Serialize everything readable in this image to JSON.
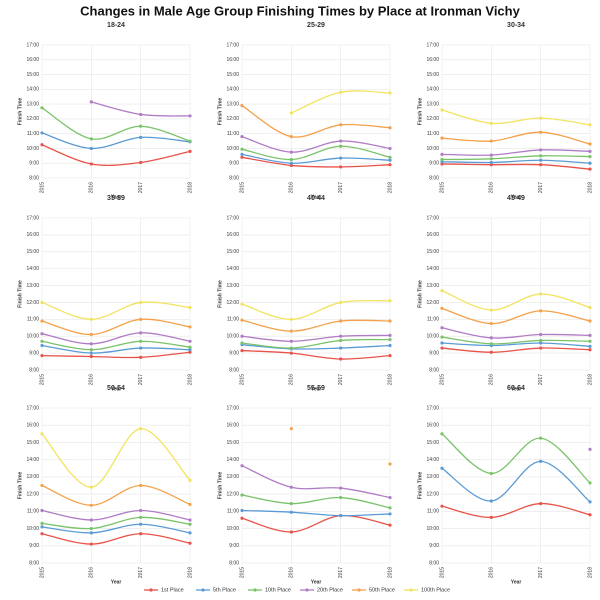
{
  "title": "Changes in Male Age Group Finishing Times by Place at Ironman Vichy",
  "chart_data": [
    {
      "type": "line",
      "title": "18-24",
      "xlabel": "Year",
      "ylabel": "Finish Time",
      "categories": [
        "2015",
        "2016",
        "2017",
        "2018"
      ],
      "ylim": [
        8,
        17
      ],
      "yticks": [
        {
          "value": 8,
          "label": "8:00"
        },
        {
          "value": 9,
          "label": "9:00"
        },
        {
          "value": 10,
          "label": "10:00"
        },
        {
          "value": 11,
          "label": "11:00"
        },
        {
          "value": 12,
          "label": "12:00"
        },
        {
          "value": 13,
          "label": "13:00"
        },
        {
          "value": 14,
          "label": "14:00"
        },
        {
          "value": 15,
          "label": "15:00"
        },
        {
          "value": 16,
          "label": "16:00"
        },
        {
          "value": 17,
          "label": "17:00"
        }
      ],
      "series": [
        {
          "name": "1st Place",
          "color": "#e8534a",
          "values": [
            10.25,
            8.95,
            9.05,
            9.8
          ]
        },
        {
          "name": "5th Place",
          "color": "#5b9bd5",
          "values": [
            11.05,
            10.0,
            10.75,
            10.45
          ]
        },
        {
          "name": "10th Place",
          "color": "#7ac36a",
          "values": [
            12.75,
            10.65,
            11.5,
            10.5
          ]
        },
        {
          "name": "20th Place",
          "color": "#b07cc6",
          "values": [
            null,
            13.15,
            12.3,
            12.2
          ]
        },
        {
          "name": "50th Place",
          "color": "#f5a04a",
          "values": [
            null,
            null,
            null,
            null
          ]
        },
        {
          "name": "100th Place",
          "color": "#f2e35e",
          "values": [
            null,
            null,
            null,
            null
          ]
        }
      ]
    },
    {
      "type": "line",
      "title": "25-29",
      "xlabel": "Year",
      "ylabel": "Finish Time",
      "categories": [
        "2015",
        "2016",
        "2017",
        "2018"
      ],
      "ylim": [
        8,
        17
      ],
      "yticks": [
        {
          "value": 8,
          "label": "8:00"
        },
        {
          "value": 9,
          "label": "9:00"
        },
        {
          "value": 10,
          "label": "10:00"
        },
        {
          "value": 11,
          "label": "11:00"
        },
        {
          "value": 12,
          "label": "12:00"
        },
        {
          "value": 13,
          "label": "13:00"
        },
        {
          "value": 14,
          "label": "14:00"
        },
        {
          "value": 15,
          "label": "15:00"
        },
        {
          "value": 16,
          "label": "16:00"
        },
        {
          "value": 17,
          "label": "17:00"
        }
      ],
      "series": [
        {
          "name": "1st Place",
          "color": "#e8534a",
          "values": [
            9.4,
            8.85,
            8.75,
            8.9
          ]
        },
        {
          "name": "5th Place",
          "color": "#5b9bd5",
          "values": [
            9.6,
            9.0,
            9.35,
            9.2
          ]
        },
        {
          "name": "10th Place",
          "color": "#7ac36a",
          "values": [
            9.95,
            9.25,
            10.15,
            9.4
          ]
        },
        {
          "name": "20th Place",
          "color": "#b07cc6",
          "values": [
            10.8,
            9.75,
            10.5,
            10.0
          ]
        },
        {
          "name": "50th Place",
          "color": "#f5a04a",
          "values": [
            12.9,
            10.8,
            11.6,
            11.4
          ]
        },
        {
          "name": "100th Place",
          "color": "#f2e35e",
          "values": [
            null,
            12.4,
            13.8,
            13.75
          ]
        }
      ]
    },
    {
      "type": "line",
      "title": "30-34",
      "xlabel": "Year",
      "ylabel": "Finish Time",
      "categories": [
        "2015",
        "2016",
        "2017",
        "2018"
      ],
      "ylim": [
        8,
        17
      ],
      "yticks": [
        {
          "value": 8,
          "label": "8:00"
        },
        {
          "value": 9,
          "label": "9:00"
        },
        {
          "value": 10,
          "label": "10:00"
        },
        {
          "value": 11,
          "label": "11:00"
        },
        {
          "value": 12,
          "label": "12:00"
        },
        {
          "value": 13,
          "label": "13:00"
        },
        {
          "value": 14,
          "label": "14:00"
        },
        {
          "value": 15,
          "label": "15:00"
        },
        {
          "value": 16,
          "label": "16:00"
        },
        {
          "value": 17,
          "label": "17:00"
        }
      ],
      "series": [
        {
          "name": "1st Place",
          "color": "#e8534a",
          "values": [
            8.95,
            8.9,
            8.9,
            8.6
          ]
        },
        {
          "name": "5th Place",
          "color": "#5b9bd5",
          "values": [
            9.1,
            9.05,
            9.2,
            9.0
          ]
        },
        {
          "name": "10th Place",
          "color": "#7ac36a",
          "values": [
            9.25,
            9.3,
            9.5,
            9.45
          ]
        },
        {
          "name": "20th Place",
          "color": "#b07cc6",
          "values": [
            9.6,
            9.55,
            9.9,
            9.8
          ]
        },
        {
          "name": "50th Place",
          "color": "#f5a04a",
          "values": [
            10.7,
            10.5,
            11.1,
            10.3
          ]
        },
        {
          "name": "100th Place",
          "color": "#f2e35e",
          "values": [
            12.6,
            11.7,
            12.05,
            11.6
          ]
        }
      ]
    },
    {
      "type": "line",
      "title": "35-39",
      "xlabel": "Year",
      "ylabel": "Finish Time",
      "categories": [
        "2015",
        "2016",
        "2017",
        "2018"
      ],
      "ylim": [
        8,
        17
      ],
      "yticks": [
        {
          "value": 8,
          "label": "8:00"
        },
        {
          "value": 9,
          "label": "9:00"
        },
        {
          "value": 10,
          "label": "10:00"
        },
        {
          "value": 11,
          "label": "11:00"
        },
        {
          "value": 12,
          "label": "12:00"
        },
        {
          "value": 13,
          "label": "13:00"
        },
        {
          "value": 14,
          "label": "14:00"
        },
        {
          "value": 15,
          "label": "15:00"
        },
        {
          "value": 16,
          "label": "16:00"
        },
        {
          "value": 17,
          "label": "17:00"
        }
      ],
      "series": [
        {
          "name": "1st Place",
          "color": "#e8534a",
          "values": [
            8.85,
            8.8,
            8.75,
            9.05
          ]
        },
        {
          "name": "5th Place",
          "color": "#5b9bd5",
          "values": [
            9.45,
            9.0,
            9.3,
            9.2
          ]
        },
        {
          "name": "10th Place",
          "color": "#7ac36a",
          "values": [
            9.7,
            9.2,
            9.7,
            9.35
          ]
        },
        {
          "name": "20th Place",
          "color": "#b07cc6",
          "values": [
            10.15,
            9.55,
            10.2,
            9.7
          ]
        },
        {
          "name": "50th Place",
          "color": "#f5a04a",
          "values": [
            10.9,
            10.1,
            11.0,
            10.55
          ]
        },
        {
          "name": "100th Place",
          "color": "#f2e35e",
          "values": [
            12.0,
            11.0,
            12.0,
            11.7
          ]
        }
      ]
    },
    {
      "type": "line",
      "title": "40-44",
      "xlabel": "Year",
      "ylabel": "Finish Time",
      "categories": [
        "2015",
        "2016",
        "2017",
        "2018"
      ],
      "ylim": [
        8,
        17
      ],
      "yticks": [
        {
          "value": 8,
          "label": "8:00"
        },
        {
          "value": 9,
          "label": "9:00"
        },
        {
          "value": 10,
          "label": "10:00"
        },
        {
          "value": 11,
          "label": "11:00"
        },
        {
          "value": 12,
          "label": "12:00"
        },
        {
          "value": 13,
          "label": "13:00"
        },
        {
          "value": 14,
          "label": "14:00"
        },
        {
          "value": 15,
          "label": "15:00"
        },
        {
          "value": 16,
          "label": "16:00"
        },
        {
          "value": 17,
          "label": "17:00"
        }
      ],
      "series": [
        {
          "name": "1st Place",
          "color": "#e8534a",
          "values": [
            9.15,
            9.0,
            8.65,
            8.85
          ]
        },
        {
          "name": "5th Place",
          "color": "#5b9bd5",
          "values": [
            9.5,
            9.25,
            9.3,
            9.45
          ]
        },
        {
          "name": "10th Place",
          "color": "#7ac36a",
          "values": [
            9.6,
            9.3,
            9.75,
            9.8
          ]
        },
        {
          "name": "20th Place",
          "color": "#b07cc6",
          "values": [
            10.0,
            9.7,
            10.0,
            10.05
          ]
        },
        {
          "name": "50th Place",
          "color": "#f5a04a",
          "values": [
            10.95,
            10.3,
            10.9,
            10.9
          ]
        },
        {
          "name": "100th Place",
          "color": "#f2e35e",
          "values": [
            11.9,
            11.0,
            12.0,
            12.1
          ]
        }
      ]
    },
    {
      "type": "line",
      "title": "45-49",
      "xlabel": "Year",
      "ylabel": "Finish Time",
      "categories": [
        "2015",
        "2016",
        "2017",
        "2018"
      ],
      "ylim": [
        8,
        17
      ],
      "yticks": [
        {
          "value": 8,
          "label": "8:00"
        },
        {
          "value": 9,
          "label": "9:00"
        },
        {
          "value": 10,
          "label": "10:00"
        },
        {
          "value": 11,
          "label": "11:00"
        },
        {
          "value": 12,
          "label": "12:00"
        },
        {
          "value": 13,
          "label": "13:00"
        },
        {
          "value": 14,
          "label": "14:00"
        },
        {
          "value": 15,
          "label": "15:00"
        },
        {
          "value": 16,
          "label": "16:00"
        },
        {
          "value": 17,
          "label": "17:00"
        }
      ],
      "series": [
        {
          "name": "1st Place",
          "color": "#e8534a",
          "values": [
            9.3,
            9.05,
            9.3,
            9.2
          ]
        },
        {
          "name": "5th Place",
          "color": "#5b9bd5",
          "values": [
            9.6,
            9.45,
            9.6,
            9.4
          ]
        },
        {
          "name": "10th Place",
          "color": "#7ac36a",
          "values": [
            9.95,
            9.55,
            9.75,
            9.7
          ]
        },
        {
          "name": "20th Place",
          "color": "#b07cc6",
          "values": [
            10.5,
            9.9,
            10.1,
            10.05
          ]
        },
        {
          "name": "50th Place",
          "color": "#f5a04a",
          "values": [
            11.65,
            10.75,
            11.5,
            10.9
          ]
        },
        {
          "name": "100th Place",
          "color": "#f2e35e",
          "values": [
            12.7,
            11.55,
            12.5,
            11.7
          ]
        }
      ]
    },
    {
      "type": "line",
      "title": "50-54",
      "xlabel": "Year",
      "ylabel": "Finish Time",
      "categories": [
        "2015",
        "2016",
        "2017",
        "2018"
      ],
      "ylim": [
        8,
        17
      ],
      "yticks": [
        {
          "value": 8,
          "label": "8:00"
        },
        {
          "value": 9,
          "label": "9:00"
        },
        {
          "value": 10,
          "label": "10:00"
        },
        {
          "value": 11,
          "label": "11:00"
        },
        {
          "value": 12,
          "label": "12:00"
        },
        {
          "value": 13,
          "label": "13:00"
        },
        {
          "value": 14,
          "label": "14:00"
        },
        {
          "value": 15,
          "label": "15:00"
        },
        {
          "value": 16,
          "label": "16:00"
        },
        {
          "value": 17,
          "label": "17:00"
        }
      ],
      "series": [
        {
          "name": "1st Place",
          "color": "#e8534a",
          "values": [
            9.7,
            9.1,
            9.7,
            9.15
          ]
        },
        {
          "name": "5th Place",
          "color": "#5b9bd5",
          "values": [
            10.1,
            9.75,
            10.25,
            9.75
          ]
        },
        {
          "name": "10th Place",
          "color": "#7ac36a",
          "values": [
            10.3,
            10.0,
            10.65,
            10.25
          ]
        },
        {
          "name": "20th Place",
          "color": "#b07cc6",
          "values": [
            11.05,
            10.5,
            11.05,
            10.5
          ]
        },
        {
          "name": "50th Place",
          "color": "#f5a04a",
          "values": [
            12.5,
            11.35,
            12.5,
            11.4
          ]
        },
        {
          "name": "100th Place",
          "color": "#f2e35e",
          "values": [
            15.5,
            12.4,
            15.8,
            12.8
          ]
        }
      ]
    },
    {
      "type": "line",
      "title": "55-59",
      "xlabel": "Year",
      "ylabel": "Finish Time",
      "categories": [
        "2015",
        "2016",
        "2017",
        "2018"
      ],
      "ylim": [
        8,
        17
      ],
      "yticks": [
        {
          "value": 8,
          "label": "8:00"
        },
        {
          "value": 9,
          "label": "9:00"
        },
        {
          "value": 10,
          "label": "10:00"
        },
        {
          "value": 11,
          "label": "11:00"
        },
        {
          "value": 12,
          "label": "12:00"
        },
        {
          "value": 13,
          "label": "13:00"
        },
        {
          "value": 14,
          "label": "14:00"
        },
        {
          "value": 15,
          "label": "15:00"
        },
        {
          "value": 16,
          "label": "16:00"
        },
        {
          "value": 17,
          "label": "17:00"
        }
      ],
      "series": [
        {
          "name": "1st Place",
          "color": "#e8534a",
          "values": [
            10.6,
            9.8,
            10.75,
            10.2
          ]
        },
        {
          "name": "5th Place",
          "color": "#5b9bd5",
          "values": [
            11.05,
            10.95,
            10.75,
            10.85
          ]
        },
        {
          "name": "10th Place",
          "color": "#7ac36a",
          "values": [
            11.95,
            11.45,
            11.8,
            11.2
          ]
        },
        {
          "name": "20th Place",
          "color": "#b07cc6",
          "values": [
            13.65,
            12.4,
            12.35,
            11.8
          ]
        },
        {
          "name": "50th Place",
          "color": "#f5a04a",
          "values": [
            null,
            15.8,
            null,
            13.75
          ]
        },
        {
          "name": "100th Place",
          "color": "#f2e35e",
          "values": [
            null,
            null,
            null,
            null
          ]
        }
      ]
    },
    {
      "type": "line",
      "title": "60-64",
      "xlabel": "Year",
      "ylabel": "Finish Time",
      "categories": [
        "2015",
        "2016",
        "2017",
        "2018"
      ],
      "ylim": [
        8,
        17
      ],
      "yticks": [
        {
          "value": 8,
          "label": "8:00"
        },
        {
          "value": 9,
          "label": "9:00"
        },
        {
          "value": 10,
          "label": "10:00"
        },
        {
          "value": 11,
          "label": "11:00"
        },
        {
          "value": 12,
          "label": "12:00"
        },
        {
          "value": 13,
          "label": "13:00"
        },
        {
          "value": 14,
          "label": "14:00"
        },
        {
          "value": 15,
          "label": "15:00"
        },
        {
          "value": 16,
          "label": "16:00"
        },
        {
          "value": 17,
          "label": "17:00"
        }
      ],
      "series": [
        {
          "name": "1st Place",
          "color": "#e8534a",
          "values": [
            11.3,
            10.65,
            11.45,
            10.8
          ]
        },
        {
          "name": "5th Place",
          "color": "#5b9bd5",
          "values": [
            13.5,
            11.6,
            13.9,
            11.55
          ]
        },
        {
          "name": "10th Place",
          "color": "#7ac36a",
          "values": [
            15.5,
            13.2,
            15.25,
            12.65
          ]
        },
        {
          "name": "20th Place",
          "color": "#b07cc6",
          "values": [
            null,
            null,
            null,
            14.6
          ]
        },
        {
          "name": "50th Place",
          "color": "#f5a04a",
          "values": [
            null,
            null,
            null,
            null
          ]
        },
        {
          "name": "100th Place",
          "color": "#f2e35e",
          "values": [
            null,
            null,
            null,
            null
          ]
        }
      ]
    }
  ]
}
